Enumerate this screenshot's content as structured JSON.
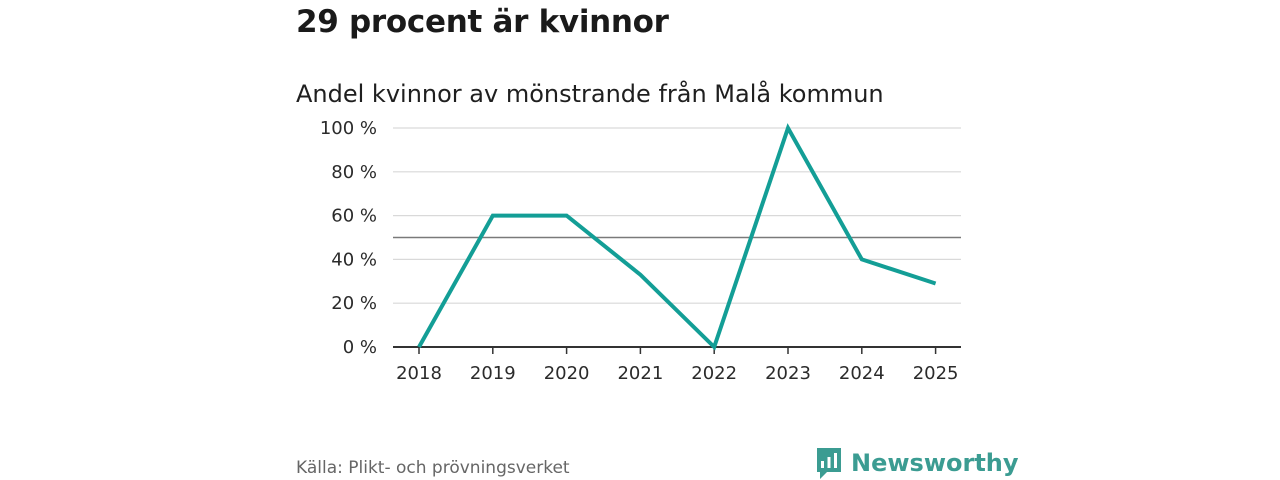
{
  "header": {
    "title": "29 procent är kvinnor",
    "subtitle": "Andel kvinnor av mönstrande från Malå kommun"
  },
  "footer": {
    "source": "Källa: Plikt- och prövningsverket",
    "brand": "Newsworthy"
  },
  "colors": {
    "line": "#139e96",
    "brand": "#3b9c92",
    "grid": "#d9d9d9",
    "reference": "#7a7a7a",
    "axis": "#333333"
  },
  "chart_data": {
    "type": "line",
    "title": "Andel kvinnor av mönstrande från Malå kommun",
    "xlabel": "",
    "ylabel": "",
    "categories": [
      "2018",
      "2019",
      "2020",
      "2021",
      "2022",
      "2023",
      "2024",
      "2025"
    ],
    "series": [
      {
        "name": "Andel kvinnor",
        "values": [
          0,
          60,
          60,
          33,
          0,
          100,
          40,
          29
        ]
      }
    ],
    "ylim": [
      0,
      100
    ],
    "yticks": [
      0,
      20,
      40,
      60,
      80,
      100
    ],
    "ytick_labels": [
      "0 %",
      "20 %",
      "40 %",
      "60 %",
      "80 %",
      "100 %"
    ],
    "reference_line": 50,
    "grid": true,
    "legend": "none"
  }
}
